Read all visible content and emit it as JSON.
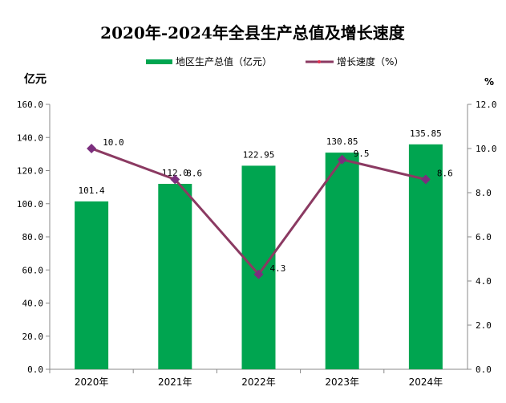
{
  "chart_data": {
    "type": "bar+line",
    "title": "2020年-2024年全县生产总值及增长速度",
    "categories": [
      "2020年",
      "2021年",
      "2022年",
      "2023年",
      "2024年"
    ],
    "series": [
      {
        "name": "地区生产总值（亿元）",
        "type": "bar",
        "axis": "left",
        "color": "#00A550",
        "values": [
          101.4,
          112.0,
          122.95,
          130.85,
          135.85
        ],
        "labels": [
          "101.4",
          "112.0",
          "122.95",
          "130.85",
          "135.85"
        ]
      },
      {
        "name": "增长速度（%）",
        "type": "line",
        "axis": "right",
        "color": "#8B3A62",
        "marker_color": "#7B2E7E",
        "values": [
          10.0,
          8.6,
          4.3,
          9.5,
          8.6
        ],
        "labels": [
          "10.0",
          "8.6",
          "4.3",
          "9.5",
          "8.6"
        ]
      }
    ],
    "ylabel": "亿元",
    "y2label": "%",
    "ylim": [
      0,
      160
    ],
    "y2lim": [
      0,
      12
    ],
    "yticks": [
      "0.0",
      "20.0",
      "40.0",
      "60.0",
      "80.0",
      "100.0",
      "120.0",
      "140.0",
      "160.0"
    ],
    "y2ticks": [
      "0.0",
      "2.0",
      "4.0",
      "6.0",
      "8.0",
      "10.0",
      "12.0"
    ],
    "legend": "top-center",
    "grid": false
  }
}
